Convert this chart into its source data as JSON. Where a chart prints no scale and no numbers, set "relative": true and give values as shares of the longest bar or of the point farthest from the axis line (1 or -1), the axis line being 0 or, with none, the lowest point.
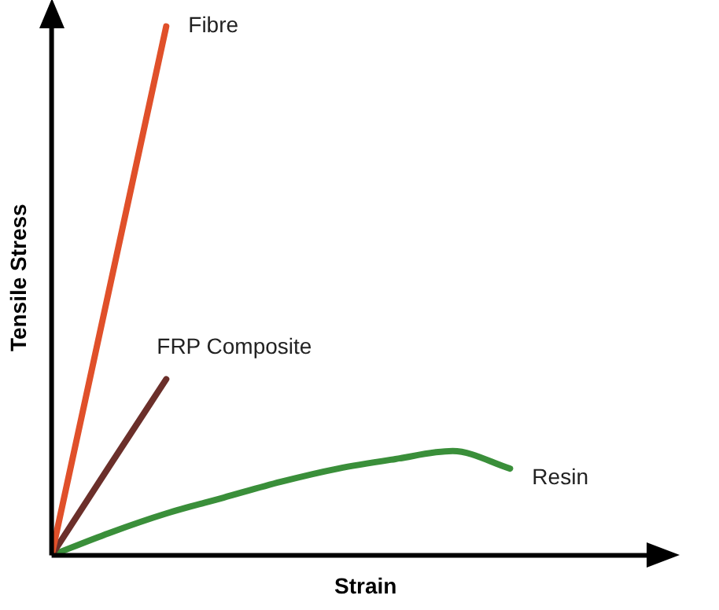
{
  "chart_data": {
    "type": "line",
    "relative": true,
    "xlabel": "Strain",
    "ylabel": "Tensile Stress",
    "legend": false,
    "grid": false,
    "marker": "none",
    "line_style": "solid",
    "categories": [
      null,
      null,
      null,
      null,
      null,
      null,
      null,
      null,
      null
    ],
    "series": [
      {
        "name": "Fibre",
        "color": "#e0502a",
        "values": [
          0,
          0.5,
          1,
          null,
          null,
          null,
          null,
          null,
          null
        ]
      },
      {
        "name": "FRP Composite",
        "color": "#6b2f2a",
        "values": [
          0,
          0.167,
          0.333,
          null,
          null,
          null,
          null,
          null,
          null
        ]
      },
      {
        "name": "Resin",
        "color": "#3a8f3a",
        "values": [
          0,
          0.042,
          0.079,
          0.109,
          0.139,
          0.164,
          0.182,
          0.197,
          0.164
        ]
      }
    ]
  }
}
